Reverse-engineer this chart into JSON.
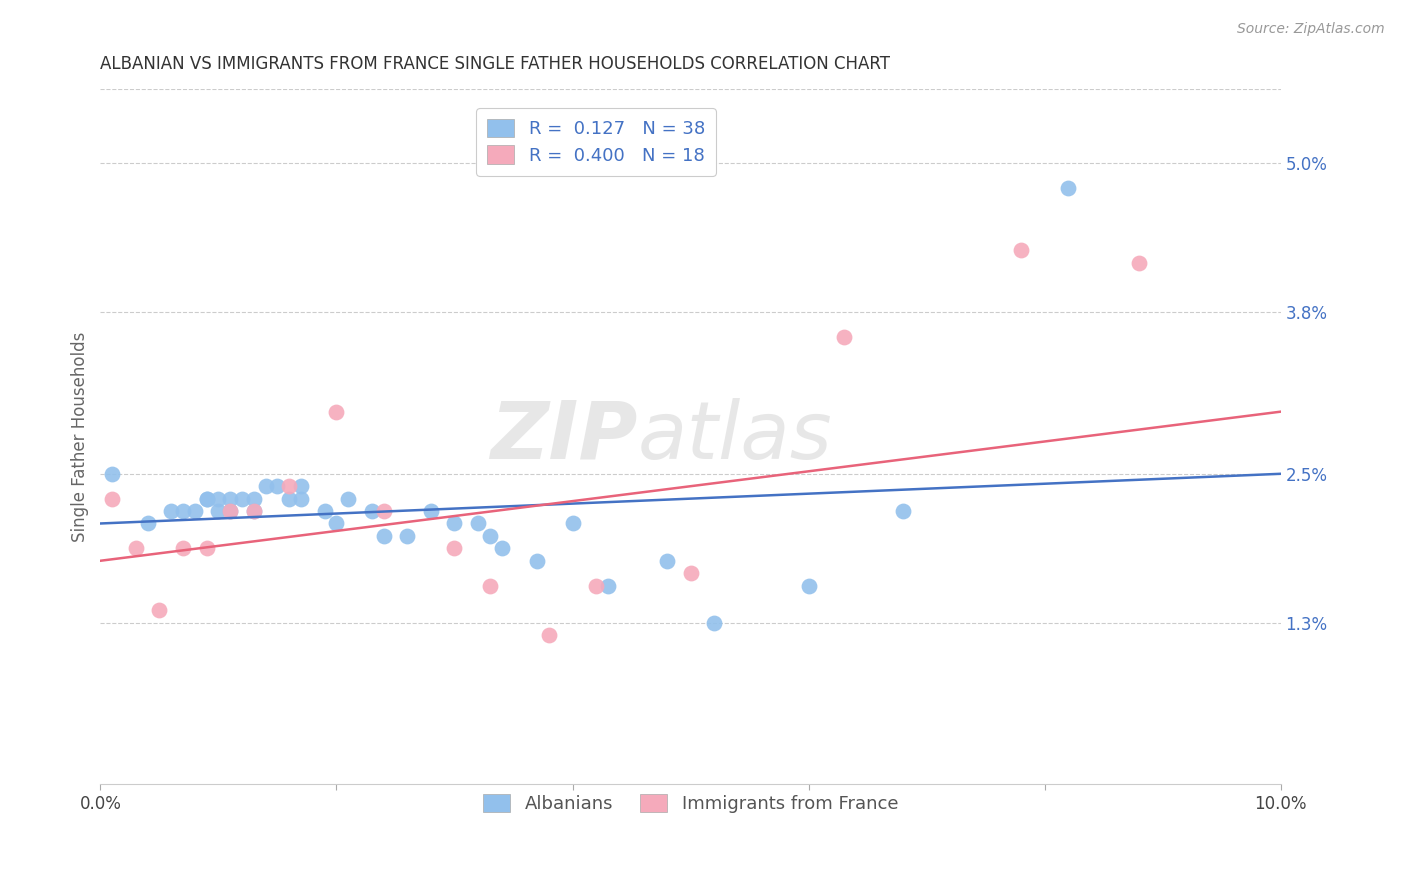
{
  "title": "ALBANIAN VS IMMIGRANTS FROM FRANCE SINGLE FATHER HOUSEHOLDS CORRELATION CHART",
  "source": "Source: ZipAtlas.com",
  "ylabel": "Single Father Households",
  "xlim": [
    0.0,
    0.1
  ],
  "ylim": [
    0.0,
    0.056
  ],
  "yticks": [
    0.013,
    0.025,
    0.038,
    0.05
  ],
  "ytick_labels": [
    "1.3%",
    "2.5%",
    "3.8%",
    "5.0%"
  ],
  "xticks": [
    0.0,
    0.02,
    0.04,
    0.06,
    0.08,
    0.1
  ],
  "xtick_labels": [
    "0.0%",
    "",
    "",
    "",
    "",
    "10.0%"
  ],
  "watermark_zip": "ZIP",
  "watermark_atlas": "atlas",
  "legend_blue_r": "R =  0.127",
  "legend_blue_n": "N = 38",
  "legend_pink_r": "R =  0.400",
  "legend_pink_n": "N = 18",
  "blue_color": "#92C0EC",
  "pink_color": "#F5AABB",
  "blue_line_color": "#4472C4",
  "pink_line_color": "#E8637A",
  "albanians_x": [
    0.001,
    0.004,
    0.006,
    0.007,
    0.008,
    0.009,
    0.009,
    0.01,
    0.01,
    0.011,
    0.011,
    0.012,
    0.013,
    0.013,
    0.014,
    0.015,
    0.016,
    0.017,
    0.017,
    0.019,
    0.02,
    0.021,
    0.023,
    0.024,
    0.026,
    0.028,
    0.03,
    0.032,
    0.033,
    0.034,
    0.037,
    0.04,
    0.043,
    0.048,
    0.052,
    0.06,
    0.068,
    0.082
  ],
  "albanians_y": [
    0.025,
    0.021,
    0.022,
    0.022,
    0.022,
    0.023,
    0.023,
    0.022,
    0.023,
    0.023,
    0.022,
    0.023,
    0.022,
    0.023,
    0.024,
    0.024,
    0.023,
    0.023,
    0.024,
    0.022,
    0.021,
    0.023,
    0.022,
    0.02,
    0.02,
    0.022,
    0.021,
    0.021,
    0.02,
    0.019,
    0.018,
    0.021,
    0.016,
    0.018,
    0.013,
    0.016,
    0.022,
    0.048
  ],
  "france_x": [
    0.001,
    0.003,
    0.005,
    0.007,
    0.009,
    0.011,
    0.013,
    0.016,
    0.02,
    0.024,
    0.03,
    0.033,
    0.038,
    0.042,
    0.05,
    0.063,
    0.078,
    0.088
  ],
  "france_y": [
    0.023,
    0.019,
    0.014,
    0.019,
    0.019,
    0.022,
    0.022,
    0.024,
    0.03,
    0.022,
    0.019,
    0.016,
    0.012,
    0.016,
    0.017,
    0.036,
    0.043,
    0.042
  ],
  "blue_trendline_x": [
    0.0,
    0.1
  ],
  "blue_trendline_y": [
    0.021,
    0.025
  ],
  "pink_trendline_x": [
    0.0,
    0.1
  ],
  "pink_trendline_y": [
    0.018,
    0.03
  ]
}
